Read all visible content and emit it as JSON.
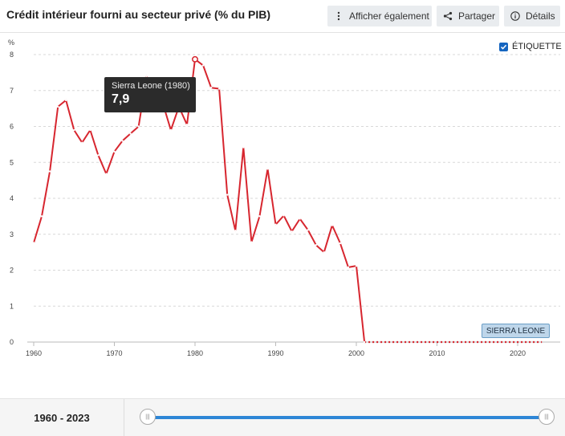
{
  "header": {
    "title": "Crédit intérieur fourni au secteur privé (% du PIB)",
    "show_also_label": "Afficher également",
    "share_label": "Partager",
    "details_label": "Détails"
  },
  "label_toggle": {
    "label": "ÉTIQUETTE",
    "checked": true
  },
  "tooltip": {
    "name": "Sierra Leone (1980)",
    "value": "7,9"
  },
  "series_label": "SIERRA LEONE",
  "range": {
    "text": "1960 - 2023",
    "start": 1960,
    "end": 2023
  },
  "colors": {
    "series": "#d7262f",
    "accent": "#2e86d6"
  },
  "chart_data": {
    "type": "line",
    "ylabel": "%",
    "ylim": [
      0,
      8
    ],
    "xlim": [
      1960,
      2025
    ],
    "y_ticks": [
      0,
      1,
      2,
      3,
      4,
      5,
      6,
      7,
      8
    ],
    "x_ticks": [
      1960,
      1970,
      1980,
      1990,
      2000,
      2010,
      2020
    ],
    "grid": true,
    "series": [
      {
        "name": "SIERRA LEONE",
        "x": [
          1960,
          1961,
          1962,
          1963,
          1964,
          1965,
          1966,
          1967,
          1968,
          1969,
          1970,
          1971,
          1972,
          1973,
          1974,
          1975,
          1976,
          1977,
          1978,
          1979,
          1980,
          1981,
          1982,
          1983,
          1984,
          1985,
          1986,
          1987,
          1988,
          1989,
          1990,
          1991,
          1992,
          1993,
          1994,
          1995,
          1996,
          1997,
          1998,
          1999,
          2000,
          2001,
          2002,
          2003,
          2004,
          2005,
          2006,
          2007,
          2008,
          2009,
          2010,
          2011,
          2012,
          2013,
          2014,
          2015,
          2016,
          2017,
          2018,
          2019,
          2020,
          2021,
          2022,
          2023
        ],
        "values": [
          2.76,
          3.5,
          4.75,
          6.55,
          6.73,
          5.9,
          5.55,
          5.9,
          5.2,
          4.68,
          5.3,
          5.6,
          5.8,
          6.0,
          7.4,
          6.75,
          6.65,
          5.9,
          6.55,
          6.05,
          7.87,
          7.7,
          7.08,
          7.05,
          4.1,
          3.1,
          5.42,
          2.78,
          3.5,
          4.82,
          3.27,
          3.52,
          3.08,
          3.43,
          3.12,
          2.7,
          2.5,
          3.25,
          2.75,
          2.08,
          2.12,
          0,
          0,
          0,
          0,
          0,
          0,
          0,
          0,
          0,
          0,
          0,
          0,
          0,
          0,
          0,
          0,
          0,
          0,
          0,
          0,
          0,
          0,
          0
        ],
        "highlight": {
          "x": 1980,
          "y": 7.87
        }
      }
    ]
  }
}
